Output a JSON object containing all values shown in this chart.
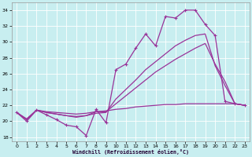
{
  "xlabel": "Windchill (Refroidissement éolien,°C)",
  "background_color": "#c8eef0",
  "grid_color": "#ffffff",
  "line_color": "#993399",
  "xlim": [
    -0.5,
    23.5
  ],
  "ylim": [
    17.5,
    35.0
  ],
  "xticks": [
    0,
    1,
    2,
    3,
    4,
    5,
    6,
    7,
    8,
    9,
    10,
    11,
    12,
    13,
    14,
    15,
    16,
    17,
    18,
    19,
    20,
    21,
    22,
    23
  ],
  "yticks": [
    18,
    20,
    22,
    24,
    26,
    28,
    30,
    32,
    34
  ],
  "series_marked": {
    "x": [
      0,
      1,
      2,
      3,
      4,
      5,
      6,
      7,
      8,
      9,
      10,
      11,
      12,
      13,
      14,
      15,
      16,
      17,
      18,
      19,
      20,
      21,
      22,
      23
    ],
    "y": [
      21.1,
      20.0,
      21.4,
      20.8,
      20.2,
      19.5,
      19.3,
      18.2,
      21.5,
      19.8,
      26.5,
      27.2,
      29.2,
      31.0,
      29.5,
      33.2,
      33.0,
      34.0,
      34.0,
      32.2,
      30.8,
      22.5,
      22.2,
      22.0
    ]
  },
  "series_plain": [
    {
      "x": [
        0,
        1,
        2,
        3,
        4,
        5,
        6,
        7,
        8,
        9,
        10,
        11,
        12,
        13,
        14,
        15,
        16,
        17,
        18,
        19,
        20,
        21,
        22,
        23
      ],
      "y": [
        21.1,
        20.2,
        21.4,
        21.1,
        20.9,
        20.7,
        20.5,
        20.7,
        21.2,
        21.2,
        22.2,
        23.2,
        24.2,
        25.2,
        26.2,
        27.0,
        27.8,
        28.5,
        29.2,
        29.8,
        27.2,
        25.0,
        22.2,
        22.0
      ]
    },
    {
      "x": [
        0,
        1,
        2,
        3,
        4,
        5,
        6,
        7,
        8,
        9,
        10,
        11,
        12,
        13,
        14,
        15,
        16,
        17,
        18,
        19,
        20,
        21,
        22,
        23
      ],
      "y": [
        21.1,
        20.3,
        21.4,
        21.2,
        21.1,
        21.0,
        20.9,
        21.0,
        21.2,
        21.3,
        21.5,
        21.6,
        21.8,
        21.9,
        22.0,
        22.1,
        22.1,
        22.2,
        22.2,
        22.2,
        22.2,
        22.2,
        22.2,
        22.0
      ]
    },
    {
      "x": [
        0,
        1,
        2,
        3,
        4,
        5,
        6,
        7,
        8,
        9,
        10,
        11,
        12,
        13,
        14,
        15,
        16,
        17,
        18,
        19,
        20,
        21,
        22,
        23
      ],
      "y": [
        21.1,
        20.2,
        21.4,
        21.1,
        20.9,
        20.7,
        20.6,
        20.7,
        21.0,
        21.1,
        22.8,
        24.0,
        25.2,
        26.5,
        27.5,
        28.5,
        29.5,
        30.2,
        30.8,
        31.0,
        27.0,
        24.5,
        22.2,
        22.0
      ]
    }
  ]
}
